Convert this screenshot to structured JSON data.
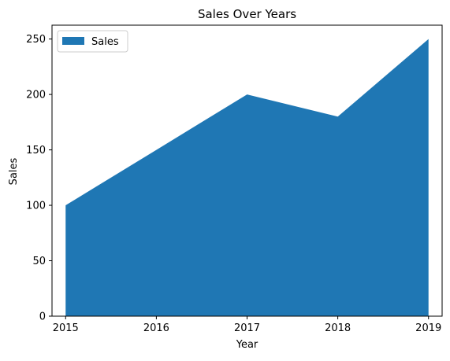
{
  "chart_data": {
    "type": "area",
    "title": "Sales Over Years",
    "xlabel": "Year",
    "ylabel": "Sales",
    "x": [
      "2015",
      "2016",
      "2017",
      "2018",
      "2019"
    ],
    "series": [
      {
        "name": "Sales",
        "values": [
          100,
          150,
          200,
          180,
          250
        ],
        "color": "#1f77b4"
      }
    ],
    "xlim": [
      2014.85,
      2019.15
    ],
    "ylim": [
      0,
      262.5
    ],
    "yticks": [
      0,
      50,
      100,
      150,
      200,
      250
    ],
    "grid": false,
    "legend_position": "top-left"
  }
}
